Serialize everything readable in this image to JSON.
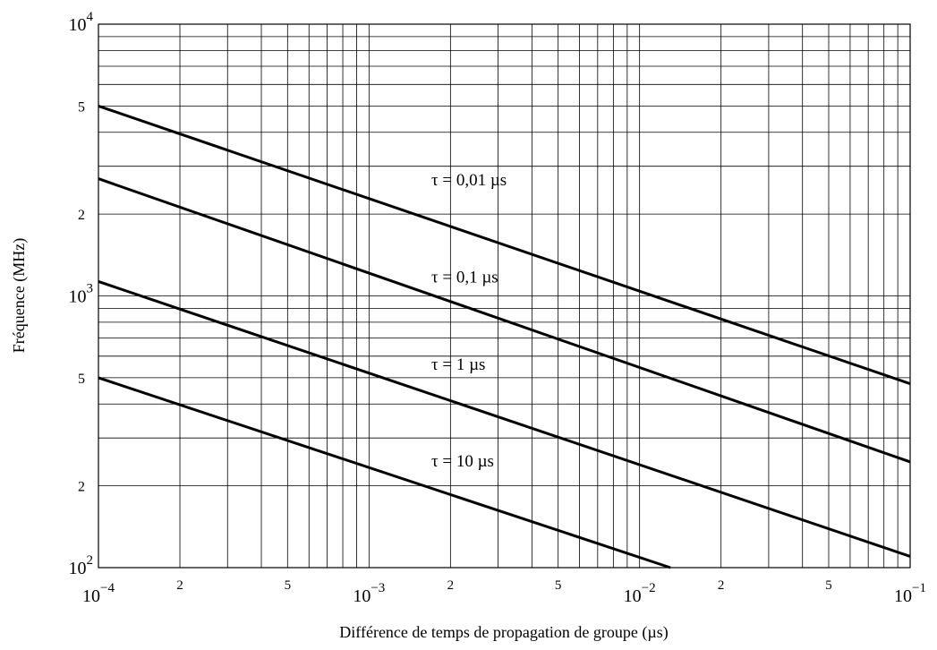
{
  "chart_data": {
    "type": "line",
    "title": "",
    "xlabel": "Différence de temps de propagation de groupe (µs)",
    "ylabel": "Fréquence (MHz)",
    "x_scale": "log",
    "y_scale": "log",
    "xlim": [
      0.0001,
      0.1
    ],
    "ylim": [
      100,
      10000
    ],
    "grid": true,
    "x_major_ticks": [
      {
        "value": 0.0001,
        "base": "10",
        "exp": "−4"
      },
      {
        "value": 0.001,
        "base": "10",
        "exp": "−3"
      },
      {
        "value": 0.01,
        "base": "10",
        "exp": "−2"
      },
      {
        "value": 0.1,
        "base": "10",
        "exp": "−1"
      }
    ],
    "x_minor_labels": [
      {
        "value": 0.0002,
        "label": "2"
      },
      {
        "value": 0.0005,
        "label": "5"
      },
      {
        "value": 0.002,
        "label": "2"
      },
      {
        "value": 0.005,
        "label": "5"
      },
      {
        "value": 0.02,
        "label": "2"
      },
      {
        "value": 0.05,
        "label": "5"
      }
    ],
    "y_major_ticks": [
      {
        "value": 100,
        "base": "10",
        "exp": "2"
      },
      {
        "value": 1000,
        "base": "10",
        "exp": "3"
      },
      {
        "value": 10000,
        "base": "10",
        "exp": "4"
      }
    ],
    "y_minor_labels": [
      {
        "value": 200,
        "label": "2"
      },
      {
        "value": 500,
        "label": "5"
      },
      {
        "value": 2000,
        "label": "2"
      },
      {
        "value": 5000,
        "label": "5"
      }
    ],
    "series": [
      {
        "name": "τ = 0,01 µs",
        "points": [
          [
            0.0001,
            5000
          ],
          [
            0.1,
            475
          ]
        ],
        "label_at": [
          0.0017,
          2550
        ]
      },
      {
        "name": "τ = 0,1 µs",
        "points": [
          [
            0.0001,
            2700
          ],
          [
            0.1,
            245
          ]
        ],
        "label_at": [
          0.0017,
          1120
        ]
      },
      {
        "name": "τ = 1 µs",
        "points": [
          [
            0.0001,
            1130
          ],
          [
            0.1,
            110
          ]
        ],
        "label_at": [
          0.0017,
          535
        ]
      },
      {
        "name": "τ = 10 µs",
        "points": [
          [
            0.0001,
            500
          ],
          [
            0.013,
            100
          ]
        ],
        "label_at": [
          0.0017,
          236
        ]
      }
    ]
  }
}
